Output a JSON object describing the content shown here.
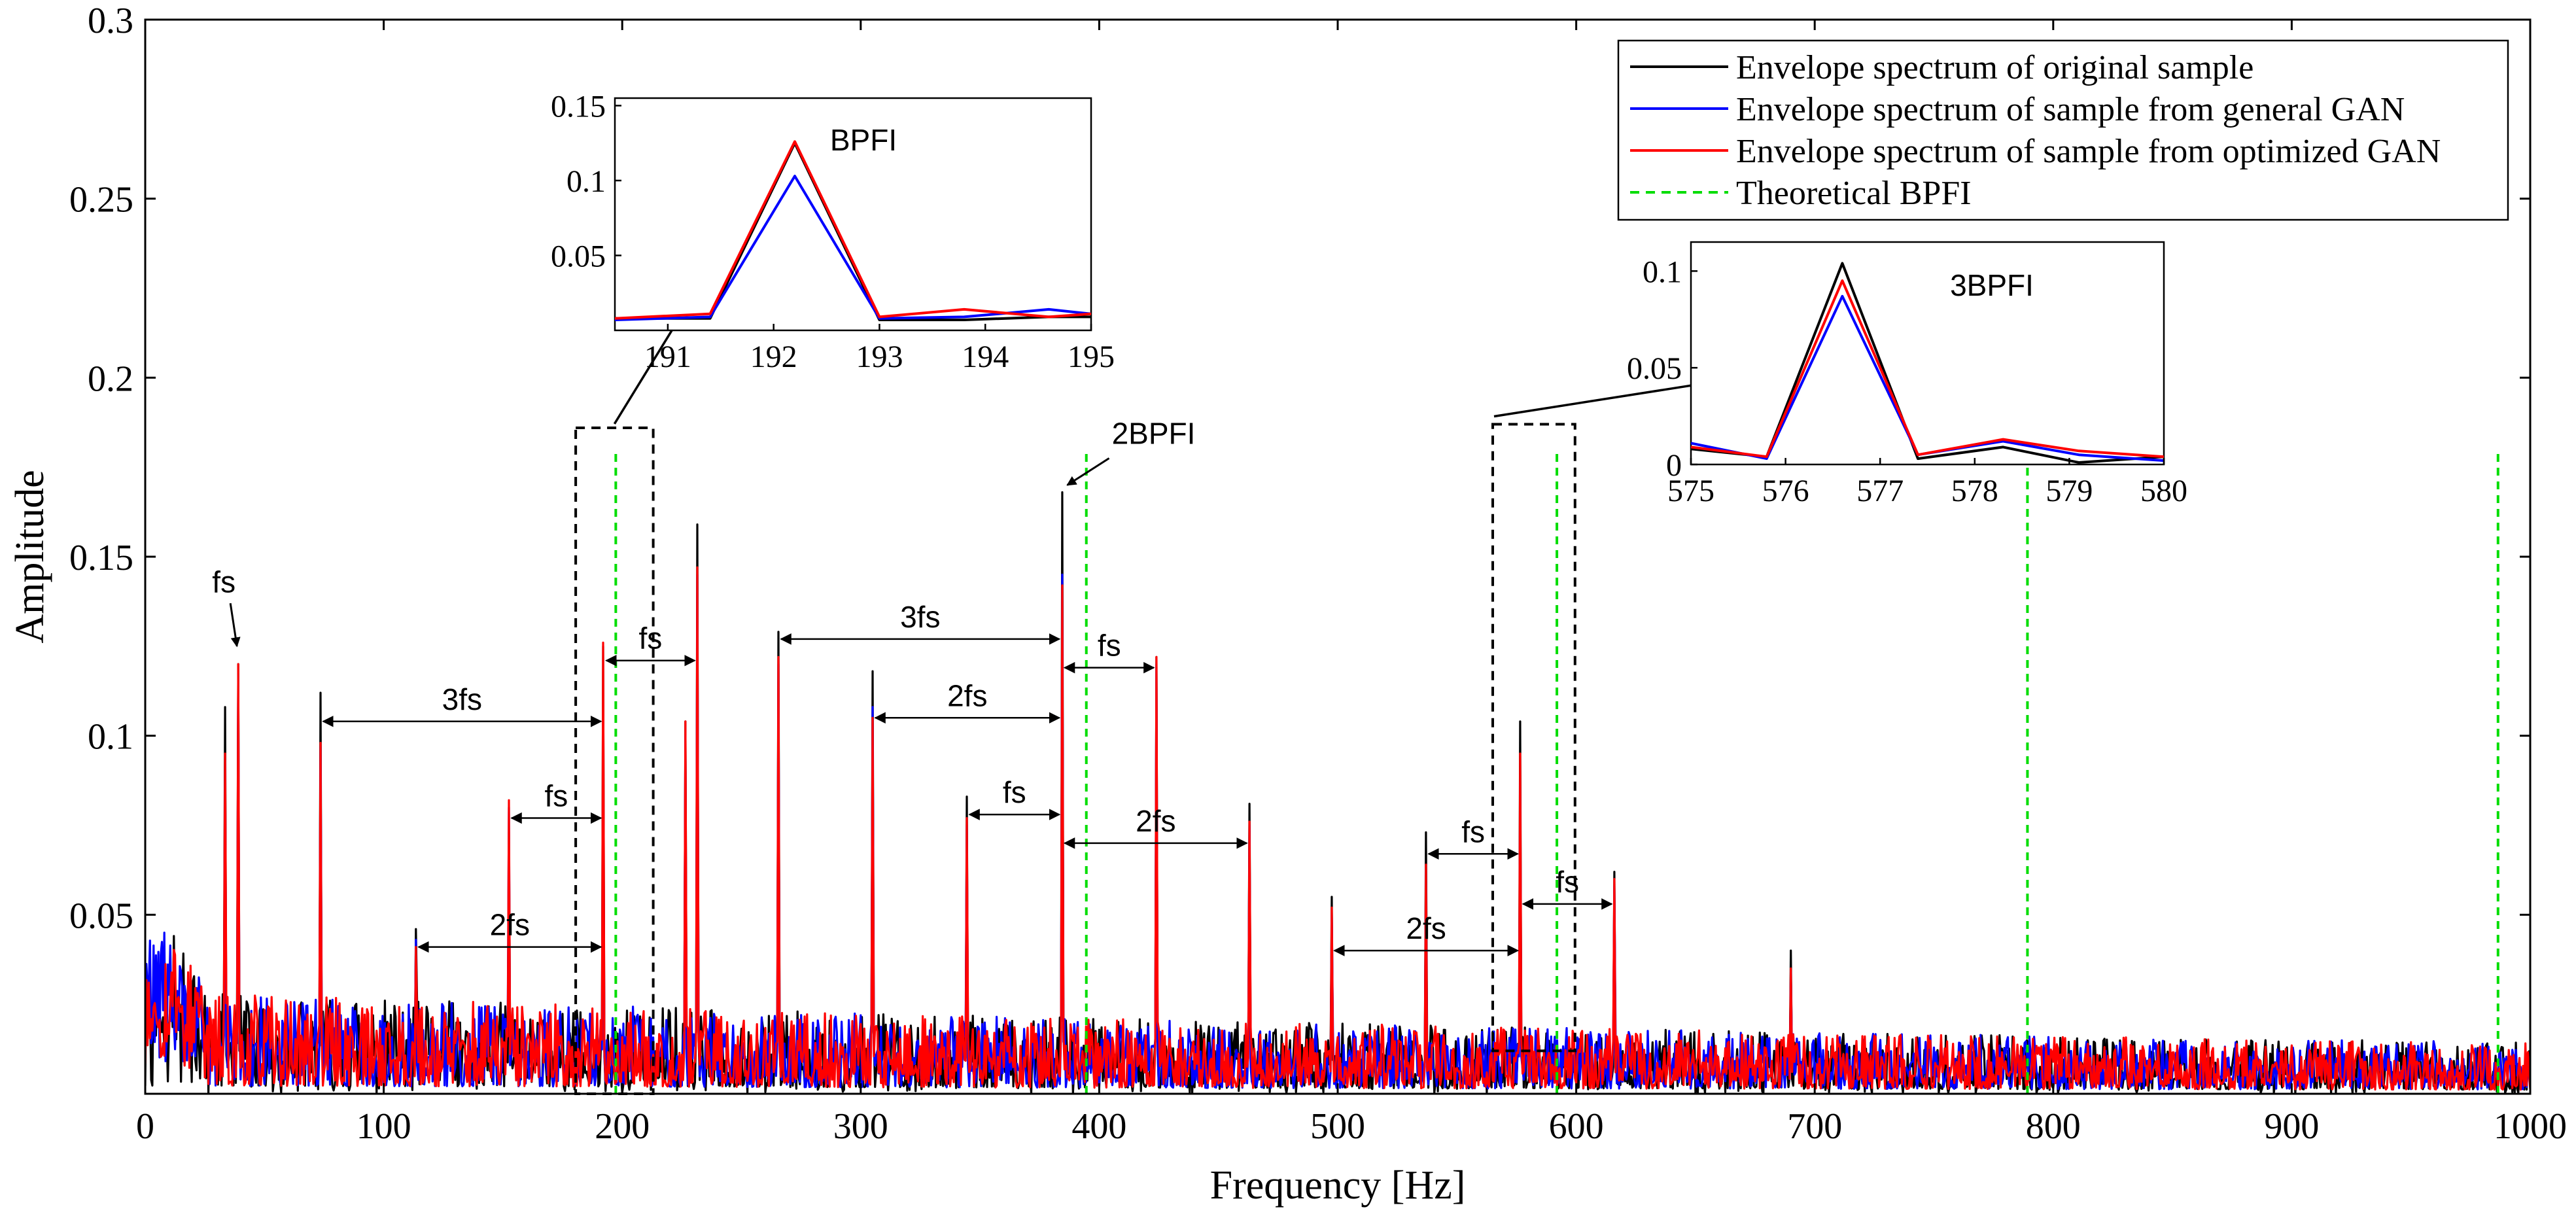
{
  "chart_data": {
    "type": "line",
    "title": "",
    "xlabel": "Frequency [Hz]",
    "ylabel": "Amplitude",
    "xlim": [
      0,
      1000
    ],
    "ylim": [
      0,
      0.3
    ],
    "xticks": [
      "0",
      "100",
      "200",
      "300",
      "400",
      "500",
      "600",
      "700",
      "800",
      "900",
      "1000"
    ],
    "yticks": [
      "0.05",
      "0.1",
      "0.15",
      "0.2",
      "0.25",
      "0.3"
    ],
    "legend": [
      {
        "label": "Envelope spectrum of original sample",
        "color": "#000000",
        "style": "solid"
      },
      {
        "label": "Envelope spectrum of sample from general GAN",
        "color": "#0000ff",
        "style": "solid"
      },
      {
        "label": "Envelope spectrum of sample from optimized GAN",
        "color": "#ff0000",
        "style": "solid"
      },
      {
        "label": "Theoretical BPFI",
        "color": "#00dd00",
        "style": "dashed"
      }
    ],
    "legend_position": "top-right",
    "theoretical_bpfi_lines": [
      197.3,
      394.6,
      591.9,
      789.2,
      986.5
    ],
    "peaks": [
      {
        "f": 33.5,
        "original": 0.108,
        "general": 0.093,
        "optimized": 0.095
      },
      {
        "f": 39.0,
        "original": 0.12,
        "general": 0.117,
        "optimized": 0.12
      },
      {
        "f": 73.5,
        "original": 0.112,
        "general": 0.097,
        "optimized": 0.098
      },
      {
        "f": 113.5,
        "original": 0.046,
        "general": 0.043,
        "optimized": 0.041
      },
      {
        "f": 152.5,
        "original": 0.073,
        "general": 0.08,
        "optimized": 0.082
      },
      {
        "f": 192.2,
        "original": 0.125,
        "general": 0.103,
        "optimized": 0.126
      },
      {
        "f": 226.5,
        "original": 0.104,
        "general": 0.1,
        "optimized": 0.104
      },
      {
        "f": 231.5,
        "original": 0.159,
        "general": 0.145,
        "optimized": 0.147
      },
      {
        "f": 265.5,
        "original": 0.129,
        "general": 0.12,
        "optimized": 0.122
      },
      {
        "f": 305.0,
        "original": 0.118,
        "general": 0.108,
        "optimized": 0.105
      },
      {
        "f": 344.5,
        "original": 0.083,
        "general": 0.075,
        "optimized": 0.077
      },
      {
        "f": 384.4,
        "original": 0.168,
        "general": 0.145,
        "optimized": 0.142
      },
      {
        "f": 424.0,
        "original": 0.122,
        "general": 0.12,
        "optimized": 0.122
      },
      {
        "f": 463.0,
        "original": 0.081,
        "general": 0.075,
        "optimized": 0.076
      },
      {
        "f": 497.5,
        "original": 0.055,
        "general": 0.05,
        "optimized": 0.052
      },
      {
        "f": 537.0,
        "original": 0.073,
        "general": 0.063,
        "optimized": 0.064
      },
      {
        "f": 576.6,
        "original": 0.104,
        "general": 0.087,
        "optimized": 0.095
      },
      {
        "f": 616.0,
        "original": 0.062,
        "general": 0.058,
        "optimized": 0.06
      },
      {
        "f": 690.0,
        "original": 0.04,
        "general": 0.034,
        "optimized": 0.035
      }
    ],
    "insets": [
      {
        "name": "BPFI",
        "label": "BPFI",
        "xlim": [
          190.5,
          195
        ],
        "ylim": [
          0,
          0.155
        ],
        "xticks": [
          "191",
          "192",
          "193",
          "194",
          "195"
        ],
        "yticks": [
          "0.05",
          "0.1",
          "0.15"
        ],
        "x": [
          190.5,
          191.4,
          192.2,
          193.0,
          193.8,
          194.6,
          195.0
        ],
        "original": [
          0.008,
          0.008,
          0.125,
          0.007,
          0.007,
          0.009,
          0.009
        ],
        "general": [
          0.007,
          0.009,
          0.103,
          0.008,
          0.009,
          0.014,
          0.011
        ],
        "optimized": [
          0.008,
          0.011,
          0.126,
          0.009,
          0.014,
          0.009,
          0.011
        ]
      },
      {
        "name": "3BPFI",
        "label": "3BPFI",
        "xlim": [
          575,
          580
        ],
        "ylim": [
          0,
          0.115
        ],
        "xticks": [
          "575",
          "576",
          "577",
          "578",
          "579",
          "580"
        ],
        "yticks": [
          "0",
          "0.05",
          "0.1"
        ],
        "x": [
          575.0,
          575.8,
          576.6,
          577.4,
          578.3,
          579.1,
          580.0
        ],
        "original": [
          0.008,
          0.004,
          0.104,
          0.003,
          0.009,
          0.001,
          0.004
        ],
        "general": [
          0.011,
          0.003,
          0.087,
          0.005,
          0.012,
          0.005,
          0.002
        ],
        "optimized": [
          0.009,
          0.004,
          0.095,
          0.005,
          0.013,
          0.007,
          0.004
        ]
      }
    ],
    "annotations": [
      {
        "text": "fs",
        "kind": "peak-label",
        "fx": 39
      },
      {
        "text": "2BPFI",
        "kind": "peak-label",
        "fx": 384.4
      },
      {
        "text": "3fs",
        "kind": "span",
        "f1": 73.5,
        "f2": 192.2,
        "y": 0.104
      },
      {
        "text": "fs",
        "kind": "span",
        "f1": 152.5,
        "f2": 192.2,
        "y": 0.077
      },
      {
        "text": "2fs",
        "kind": "span",
        "f1": 113.5,
        "f2": 192.2,
        "y": 0.041
      },
      {
        "text": "fs",
        "kind": "span",
        "f1": 192.2,
        "f2": 231.5,
        "y": 0.121
      },
      {
        "text": "3fs",
        "kind": "span",
        "f1": 265.5,
        "f2": 384.4,
        "y": 0.127
      },
      {
        "text": "2fs",
        "kind": "span",
        "f1": 305,
        "f2": 384.4,
        "y": 0.105
      },
      {
        "text": "fs",
        "kind": "span",
        "f1": 344.5,
        "f2": 384.4,
        "y": 0.078
      },
      {
        "text": "fs",
        "kind": "span",
        "f1": 384.4,
        "f2": 424,
        "y": 0.119
      },
      {
        "text": "2fs",
        "kind": "span",
        "f1": 384.4,
        "f2": 463,
        "y": 0.07
      },
      {
        "text": "fs",
        "kind": "span",
        "f1": 537,
        "f2": 576.6,
        "y": 0.067
      },
      {
        "text": "2fs",
        "kind": "span",
        "f1": 497.5,
        "f2": 576.6,
        "y": 0.04
      },
      {
        "text": "fs",
        "kind": "span",
        "f1": 576.6,
        "f2": 616,
        "y": 0.053
      }
    ]
  }
}
